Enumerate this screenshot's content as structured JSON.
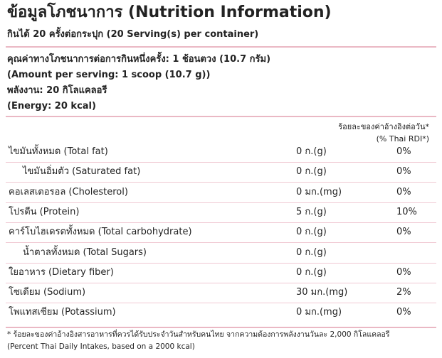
{
  "header": {
    "title": "ข้อมูลโภชนาการ (Nutrition Information)",
    "subtitle": "กินได้ 20 ครั้งต่อกระปุก (20 Serving(s) per container)"
  },
  "serving": [
    "คุณค่าทางโภชนาการต่อการกินหนึ่งครั้ง: 1 ช้อนตวง (10.7 กรัม)",
    "(Amount per serving: 1 scoop (10.7 g))",
    "พลังงาน: 20 กิโลแคลอรี",
    "(Energy: 20 kcal)"
  ],
  "table": {
    "column_header": [
      "ร้อยละของค่าอ้างอิงต่อวัน*",
      "(% Thai RDI*)"
    ],
    "rows": [
      {
        "name": "ไขมันทั้งหมด (Total fat)",
        "amount": "0 ก.(g)",
        "rdi": "0%"
      },
      {
        "name": "ไขมันอิ่มตัว (Saturated fat)",
        "amount": "0 ก.(g)",
        "rdi": "0%",
        "indent": true
      },
      {
        "name": "คอเลสเตอรอล (Cholesterol)",
        "amount": "0 มก.(mg)",
        "rdi": "0%"
      },
      {
        "name": "โปรตีน (Protein)",
        "amount": "5 ก.(g)",
        "rdi": "10%"
      },
      {
        "name": "คาร์โบไฮเดรตทั้งหมด (Total carbohydrate)",
        "amount": "0 ก.(g)",
        "rdi": "0%"
      },
      {
        "name": "น้ำตาลทั้งหมด (Total Sugars)",
        "amount": "0 ก.(g)",
        "indent": true
      },
      {
        "name": "ใยอาหาร (Dietary fiber)",
        "amount": "0 ก.(g)",
        "rdi": "0%"
      },
      {
        "name": "โซเดียม (Sodium)",
        "amount": "30 มก.(mg)",
        "rdi": "2%"
      },
      {
        "name": "โพแทสเซียม (Potassium)",
        "amount": "0 มก.(mg)",
        "rdi": "0%"
      }
    ]
  },
  "footnote": [
    "* ร้อยละของค่าอ้างอิงสารอาหารที่ควรได้รับประจำวันสำหรับคนไทย จากความต้องการพลังงานวันละ 2,000 กิโลแคลอรี",
    "(Percent Thai Daily Intakes, based on a 2000 kcal)"
  ]
}
